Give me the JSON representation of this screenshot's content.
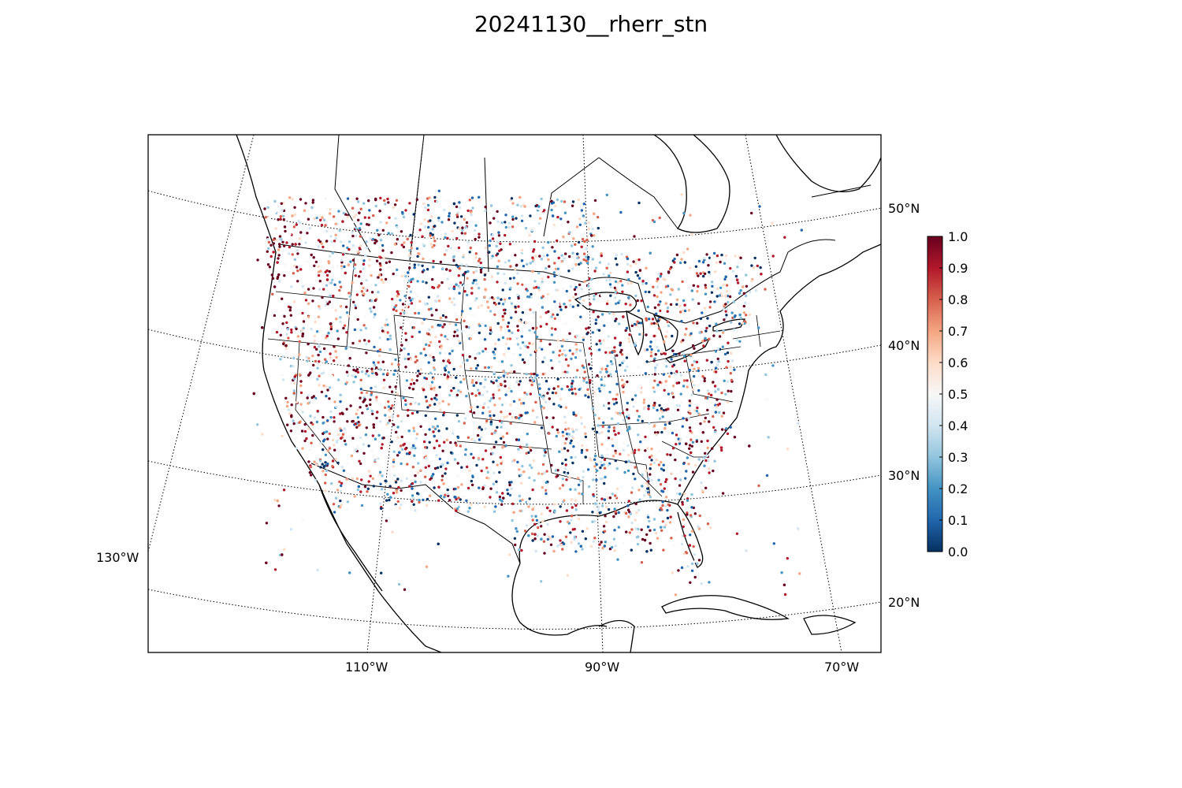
{
  "title": "20241130__rherr_stn",
  "map": {
    "projection": "lambert-conformal",
    "lat_labels": [
      "50°N",
      "40°N",
      "30°N",
      "20°N"
    ],
    "lon_labels": [
      "130°W",
      "110°W",
      "90°W",
      "70°W"
    ]
  },
  "colorbar": {
    "colormap": "RdBu_r",
    "min": 0.0,
    "max": 1.0,
    "tick_labels": [
      "0.0",
      "0.1",
      "0.2",
      "0.3",
      "0.4",
      "0.5",
      "0.6",
      "0.7",
      "0.8",
      "0.9",
      "1.0"
    ],
    "colors": [
      "#053061",
      "#2166ac",
      "#4393c3",
      "#92c5de",
      "#d1e5f0",
      "#f7f7f7",
      "#fddbc7",
      "#f4a582",
      "#d6604d",
      "#b2182b",
      "#67001f"
    ]
  }
}
